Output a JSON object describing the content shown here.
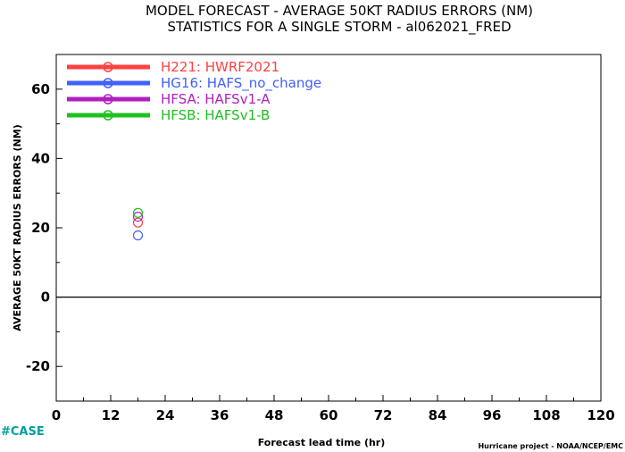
{
  "chart_data": {
    "type": "scatter",
    "title": "MODEL FORECAST - AVERAGE 50KT RADIUS ERRORS (NM)",
    "subtitle": "STATISTICS FOR A SINGLE STORM - al062021_FRED",
    "xlabel": "Forecast lead time (hr)",
    "ylabel": "AVERAGE 50KT RADIUS ERRORS (NM)",
    "xlim": [
      0,
      120
    ],
    "ylim": [
      -30,
      70
    ],
    "xticks": [
      0,
      12,
      24,
      36,
      48,
      60,
      72,
      84,
      96,
      108,
      120
    ],
    "yticks": [
      -20,
      0,
      20,
      40,
      60
    ],
    "zero_line": true,
    "grid": false,
    "legend_position": "top-left",
    "series": [
      {
        "name": "H221: HWRF2021",
        "color": "#ff4040",
        "x": [
          18
        ],
        "y": [
          21.5
        ]
      },
      {
        "name": "HG16: HAFS_no_change",
        "color": "#4060ff",
        "x": [
          18
        ],
        "y": [
          17.8
        ]
      },
      {
        "name": "HFSA: HAFSv1-A",
        "color": "#b020c0",
        "x": [
          18
        ],
        "y": [
          23.2
        ]
      },
      {
        "name": "HFSB: HAFSv1-B",
        "color": "#20c020",
        "x": [
          18
        ],
        "y": [
          24.3
        ]
      }
    ]
  },
  "footer": {
    "case_tag": "#CASE",
    "credit": "Hurricane project - NOAA/NCEP/EMC"
  }
}
